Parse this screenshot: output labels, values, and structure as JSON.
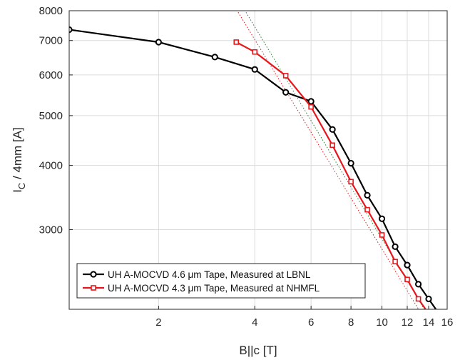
{
  "chart_data": {
    "type": "line",
    "title": "",
    "xlabel": "B||c [T]",
    "ylabel_main": "I",
    "ylabel_sub": "C",
    "ylabel_rest": " / 4mm [A]",
    "xscale": "log",
    "yscale": "log",
    "xlim": [
      1.05,
      16
    ],
    "ylim": [
      2100,
      8000
    ],
    "grid": true,
    "legend_position": "bottom-left",
    "xticks": [
      2,
      4,
      6,
      8,
      10,
      12,
      14,
      16
    ],
    "xtick_labels": [
      "2",
      "4",
      "6",
      "8",
      "10",
      "12",
      "14",
      "16"
    ],
    "yticks": [
      3000,
      4000,
      5000,
      6000,
      7000,
      8000
    ],
    "ytick_labels": [
      "3000",
      "4000",
      "5000",
      "6000",
      "7000",
      "8000"
    ],
    "series": [
      {
        "name_prefix": "UH A-MOCVD 4.6 ",
        "name_unit": "μm",
        "name_suffix": " Tape, Measured at LBNL",
        "color": "#000000",
        "marker": "circle",
        "x": [
          1.05,
          2,
          3,
          4,
          5,
          6,
          7,
          8,
          9,
          10,
          11,
          12,
          13,
          14,
          15
        ],
        "y": [
          7350,
          6950,
          6500,
          6150,
          5550,
          5330,
          4700,
          4040,
          3500,
          3150,
          2780,
          2560,
          2350,
          2200,
          2070
        ]
      },
      {
        "name_prefix": "UH A-MOCVD 4.3 ",
        "name_unit": "μm",
        "name_suffix": " Tape, Measured at NHMFL",
        "color": "#e8161b",
        "marker": "square",
        "x": [
          3.5,
          4,
          5,
          6,
          7,
          8,
          9,
          10,
          11,
          12,
          13,
          14,
          14.5
        ],
        "y": [
          6950,
          6650,
          5980,
          5200,
          4380,
          3720,
          3280,
          2930,
          2600,
          2400,
          2200,
          2060,
          2000
        ]
      }
    ],
    "fit_lines": [
      {
        "color": "#2e7d32",
        "x": [
          3.6,
          16
        ],
        "y": [
          8300,
          1770
        ]
      },
      {
        "color": "#e8161b",
        "x": [
          3.4,
          16
        ],
        "y": [
          8300,
          1700
        ]
      }
    ]
  }
}
